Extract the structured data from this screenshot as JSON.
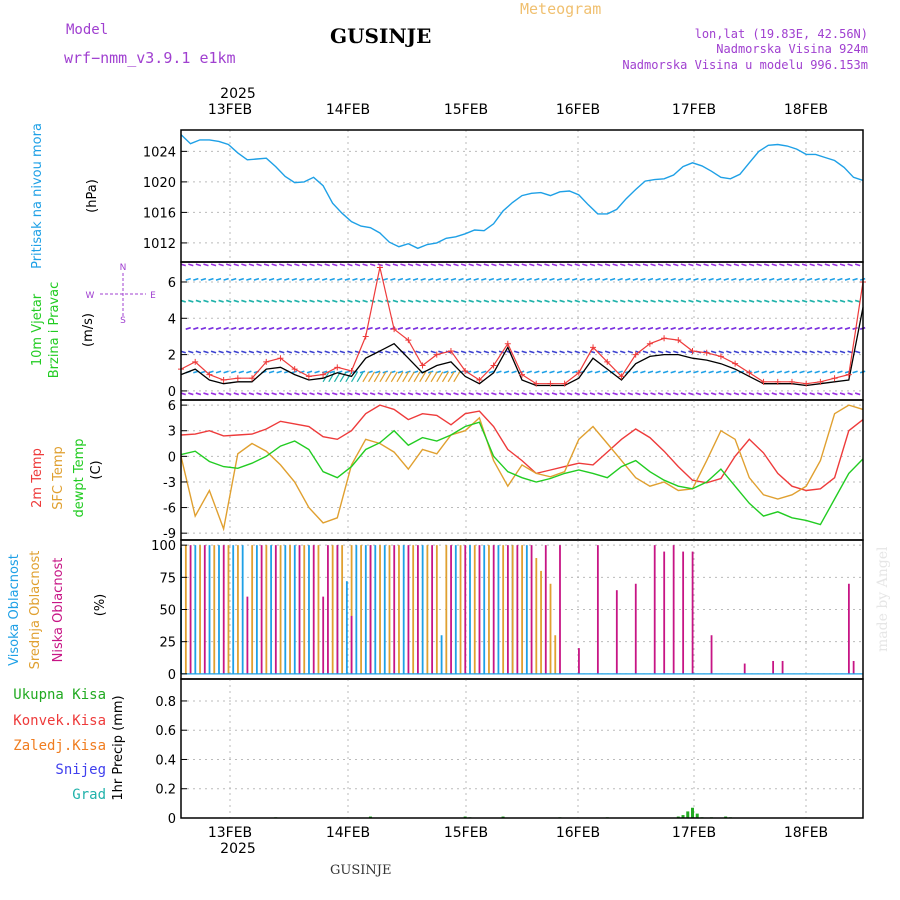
{
  "header": {
    "model_label": "Model",
    "model_name": "wrf−nmm_v3.9.1  e1km",
    "title": "GUSINJE",
    "meteogram_label": "Meteogram",
    "lonlat": "lon,lat (19.83E, 42.56N)",
    "elevation": "Nadmorska Visina 924m",
    "model_elevation": "Nadmorska Visina u modelu 996.153m",
    "watermark": "made by Angel",
    "footer_station": "GUSINJE"
  },
  "colors": {
    "pressure": "#1ea0e6",
    "temp2m": "#ee3b3b",
    "sfc": "#e0a030",
    "dewpt": "#22cc22",
    "high_cloud": "#1ea0e6",
    "mid_cloud": "#e0a030",
    "low_cloud": "#c71585",
    "total_precip": "#22aa22",
    "conv_precip": "#ee3b3b",
    "frz_precip": "#f07d20",
    "snow": "#4040ee",
    "graupel": "#20b2aa",
    "header_purple": "#a040d0",
    "meteogram_orange": "#f0c070"
  },
  "chart_data": [
    {
      "type": "line",
      "title": "",
      "ylabel": "Pritisak na nivou mora",
      "units": "(hPa)",
      "ylim": [
        1009.5,
        1026.8
      ],
      "yticks": [
        1012,
        1016,
        1020,
        1024
      ],
      "x_top_labels": [
        "13FEB",
        "14FEB",
        "15FEB",
        "16FEB",
        "17FEB",
        "18FEB"
      ],
      "x_top_year": "2025",
      "grid": true,
      "series": [
        {
          "x": [
            0,
            2,
            4,
            6,
            8,
            10,
            12,
            14,
            16,
            18,
            20,
            22,
            24,
            26,
            28,
            30,
            32,
            34,
            36,
            38,
            40,
            42,
            44,
            46,
            48,
            50,
            52,
            54,
            56,
            58,
            60,
            62,
            64,
            66,
            68,
            70,
            72,
            74,
            76,
            78,
            80,
            82,
            84,
            86,
            88,
            90,
            92,
            94,
            96,
            98,
            100,
            102,
            104,
            106,
            108,
            110,
            112,
            114,
            116,
            118,
            120,
            122,
            124,
            126,
            128,
            130,
            132,
            134,
            136,
            138,
            140,
            142,
            144
          ],
          "values": [
            1026.2,
            1025.0,
            1025.5,
            1025.5,
            1025.3,
            1024.9,
            1023.8,
            1022.9,
            1023.0,
            1023.1,
            1022.0,
            1020.7,
            1019.9,
            1020.0,
            1020.6,
            1019.5,
            1017.2,
            1015.9,
            1014.8,
            1014.2,
            1014.0,
            1013.3,
            1012.1,
            1011.5,
            1011.9,
            1011.3,
            1011.8,
            1012.0,
            1012.6,
            1012.8,
            1013.2,
            1013.7,
            1013.6,
            1014.5,
            1016.2,
            1017.3,
            1018.2,
            1018.5,
            1018.6,
            1018.2,
            1018.7,
            1018.8,
            1018.3,
            1017.0,
            1015.8,
            1015.8,
            1016.4,
            1017.8,
            1019.0,
            1020.1,
            1020.3,
            1020.4,
            1020.9,
            1022.0,
            1022.5,
            1022.1,
            1021.4,
            1020.6,
            1020.4,
            1021.0,
            1022.5,
            1024.0,
            1024.8,
            1024.9,
            1024.7,
            1024.3,
            1023.6,
            1023.6,
            1023.2,
            1022.8,
            1021.9,
            1020.6,
            1020.2
          ],
          "color": "#1ea0e6"
        }
      ]
    },
    {
      "type": "line",
      "title": "",
      "ylabel": "10m Vjetar Brzina i Pravac",
      "units": "(m/s)",
      "ylim": [
        -0.5,
        7.1
      ],
      "yticks": [
        0,
        2,
        4,
        6
      ],
      "compass_labels": {
        "n": "N",
        "s": "S",
        "e": "E",
        "w": "W"
      },
      "grid": true,
      "series": [
        {
          "name": "wind_speed",
          "x": [
            0,
            3,
            6,
            9,
            12,
            15,
            18,
            21,
            24,
            27,
            30,
            33,
            36,
            39,
            42,
            45,
            48,
            51,
            54,
            57,
            60,
            63,
            66,
            69,
            72,
            75,
            78,
            81,
            84,
            87,
            90,
            93,
            96,
            99,
            102,
            105,
            108,
            111,
            114,
            117,
            120,
            123,
            126,
            129,
            132,
            135,
            138,
            141,
            144
          ],
          "values": [
            0.9,
            1.2,
            0.6,
            0.4,
            0.5,
            0.5,
            1.2,
            1.3,
            0.9,
            0.6,
            0.7,
            1.0,
            0.8,
            1.8,
            2.2,
            2.6,
            1.8,
            1.0,
            1.4,
            1.6,
            0.8,
            0.4,
            1.0,
            2.4,
            0.6,
            0.3,
            0.3,
            0.3,
            0.7,
            1.8,
            1.2,
            0.6,
            1.5,
            1.9,
            2.0,
            2.0,
            1.8,
            1.7,
            1.5,
            1.2,
            0.8,
            0.4,
            0.4,
            0.4,
            0.3,
            0.4,
            0.5,
            0.6,
            4.6
          ],
          "color": "#000000"
        },
        {
          "name": "gust",
          "x": [
            0,
            3,
            6,
            9,
            12,
            15,
            18,
            21,
            24,
            27,
            30,
            33,
            36,
            39,
            42,
            45,
            48,
            51,
            54,
            57,
            60,
            63,
            66,
            69,
            72,
            75,
            78,
            81,
            84,
            87,
            90,
            93,
            96,
            99,
            102,
            105,
            108,
            111,
            114,
            117,
            120,
            123,
            126,
            129,
            132,
            135,
            138,
            141,
            144
          ],
          "values": [
            1.2,
            1.6,
            0.9,
            0.6,
            0.7,
            0.7,
            1.6,
            1.8,
            1.2,
            0.8,
            0.9,
            1.3,
            1.1,
            3.0,
            6.8,
            3.4,
            2.8,
            1.4,
            2.0,
            2.2,
            1.1,
            0.6,
            1.4,
            2.6,
            0.9,
            0.4,
            0.4,
            0.4,
            1.0,
            2.4,
            1.6,
            0.8,
            2.0,
            2.6,
            2.9,
            2.8,
            2.2,
            2.1,
            1.9,
            1.5,
            1.0,
            0.5,
            0.5,
            0.5,
            0.4,
            0.5,
            0.7,
            0.9,
            6.0
          ],
          "color": "#ee3b3b"
        }
      ],
      "wind_rows": [
        {
          "level": 6.9,
          "dir": "W",
          "color": "#9a30e0"
        },
        {
          "level": 6.1,
          "dir": "E",
          "color": "#1ea0e6"
        },
        {
          "level": 4.9,
          "dir": "W",
          "color": "#20b2aa"
        },
        {
          "level": 3.4,
          "dir": "E",
          "color": "#7a30e0"
        },
        {
          "level": 2.1,
          "dir": "W",
          "color": "#3a40d0"
        },
        {
          "level": 1.0,
          "dir": "E",
          "color": "#1ea0e6"
        },
        {
          "level": -0.2,
          "dir": "W",
          "color": "#9a30e0"
        }
      ]
    },
    {
      "type": "line",
      "title": "",
      "ylabel": [
        "2m Temp",
        "SFC Temp",
        "dewpt Temp"
      ],
      "units": "(C)",
      "ylim": [
        -9.8,
        6.6
      ],
      "yticks": [
        -9,
        -6,
        -3,
        0,
        3,
        6
      ],
      "grid": true,
      "series": [
        {
          "name": "2m Temp",
          "x": [
            0,
            3,
            6,
            9,
            12,
            15,
            18,
            21,
            24,
            27,
            30,
            33,
            36,
            39,
            42,
            45,
            48,
            51,
            54,
            57,
            60,
            63,
            66,
            69,
            72,
            75,
            78,
            81,
            84,
            87,
            90,
            93,
            96,
            99,
            102,
            105,
            108,
            111,
            114,
            117,
            120,
            123,
            126,
            129,
            132,
            135,
            138,
            141,
            144
          ],
          "values": [
            2.5,
            2.6,
            3.0,
            2.4,
            2.5,
            2.6,
            3.2,
            4.1,
            3.8,
            3.5,
            2.3,
            2.0,
            3.0,
            5.0,
            6.0,
            5.5,
            4.3,
            5.0,
            4.8,
            3.7,
            5.0,
            5.3,
            3.5,
            0.8,
            -0.5,
            -2.0,
            -1.6,
            -1.2,
            -0.8,
            -1.0,
            0.5,
            2.0,
            3.2,
            2.2,
            0.6,
            -1.2,
            -2.8,
            -3.1,
            -2.6,
            0.0,
            2.0,
            0.4,
            -2.0,
            -3.5,
            -4.0,
            -3.8,
            -2.5,
            3.0,
            4.3
          ],
          "color": "#ee3b3b"
        },
        {
          "name": "SFC Temp",
          "x": [
            0,
            3,
            6,
            9,
            12,
            15,
            18,
            21,
            24,
            27,
            30,
            33,
            36,
            39,
            42,
            45,
            48,
            51,
            54,
            57,
            60,
            63,
            66,
            69,
            72,
            75,
            78,
            81,
            84,
            87,
            90,
            93,
            96,
            99,
            102,
            105,
            108,
            111,
            114,
            117,
            120,
            123,
            126,
            129,
            132,
            135,
            138,
            141,
            144
          ],
          "values": [
            0.0,
            -7.0,
            -4.0,
            -8.5,
            0.3,
            1.5,
            0.6,
            -1.0,
            -3.0,
            -6.0,
            -7.8,
            -7.2,
            -1.0,
            2.0,
            1.5,
            0.5,
            -1.5,
            0.8,
            0.3,
            2.5,
            3.0,
            4.5,
            -0.5,
            -3.5,
            -1.0,
            -2.0,
            -2.4,
            -1.8,
            2.0,
            3.5,
            1.5,
            -0.5,
            -2.5,
            -3.5,
            -3.0,
            -4.0,
            -3.8,
            -0.5,
            3.0,
            2.0,
            -2.5,
            -4.5,
            -5.0,
            -4.5,
            -3.5,
            -0.5,
            5.0,
            6.0,
            5.5
          ],
          "color": "#e0a030"
        },
        {
          "name": "dewpt Temp",
          "x": [
            0,
            3,
            6,
            9,
            12,
            15,
            18,
            21,
            24,
            27,
            30,
            33,
            36,
            39,
            42,
            45,
            48,
            51,
            54,
            57,
            60,
            63,
            66,
            69,
            72,
            75,
            78,
            81,
            84,
            87,
            90,
            93,
            96,
            99,
            102,
            105,
            108,
            111,
            114,
            117,
            120,
            123,
            126,
            129,
            132,
            135,
            138,
            141,
            144
          ],
          "values": [
            0.2,
            0.6,
            -0.6,
            -1.2,
            -1.4,
            -0.8,
            0.0,
            1.2,
            1.8,
            0.8,
            -1.8,
            -2.5,
            -1.2,
            0.8,
            1.6,
            3.0,
            1.3,
            2.2,
            1.8,
            2.5,
            3.5,
            4.0,
            0.0,
            -1.8,
            -2.5,
            -3.0,
            -2.6,
            -2.0,
            -1.6,
            -2.0,
            -2.5,
            -1.2,
            -0.5,
            -1.8,
            -2.8,
            -3.5,
            -3.8,
            -3.0,
            -1.5,
            -3.5,
            -5.5,
            -7.0,
            -6.5,
            -7.2,
            -7.5,
            -8.0,
            -5.0,
            -2.0,
            -0.3
          ],
          "color": "#22cc22"
        }
      ]
    },
    {
      "type": "bar",
      "title": "",
      "ylabel": [
        "Visoka Oblacnost",
        "Srednja Oblacnost",
        "Niska Oblacnost"
      ],
      "units": "(%)",
      "ylim": [
        0,
        100
      ],
      "yticks": [
        0,
        25,
        50,
        75,
        100
      ],
      "grid": true,
      "series": [
        {
          "name": "Visoka Oblacnost",
          "x": [
            0,
            3,
            6,
            8,
            11,
            13,
            16,
            19,
            22,
            24,
            27,
            33,
            35,
            37,
            39,
            41,
            43,
            47,
            51,
            55,
            58,
            61,
            64,
            67,
            70,
            73
          ],
          "values": [
            98,
            100,
            100,
            100,
            100,
            100,
            100,
            100,
            100,
            100,
            100,
            100,
            72,
            100,
            100,
            100,
            100,
            100,
            100,
            30,
            100,
            100,
            100,
            100,
            100,
            100
          ],
          "color": "#1ea0e6"
        },
        {
          "name": "Srednja Oblacnost",
          "x": [
            1,
            4,
            7,
            10,
            12,
            15,
            18,
            21,
            23,
            26,
            29,
            32,
            34,
            36,
            38,
            40,
            42,
            44,
            46,
            49,
            52,
            54,
            56,
            59,
            62,
            65,
            68,
            70,
            72,
            75,
            76,
            78,
            79
          ],
          "values": [
            100,
            100,
            100,
            100,
            100,
            100,
            100,
            100,
            100,
            100,
            100,
            100,
            100,
            100,
            100,
            100,
            100,
            100,
            100,
            100,
            100,
            100,
            100,
            100,
            100,
            100,
            100,
            100,
            100,
            90,
            80,
            70,
            30
          ],
          "color": "#e0a030"
        },
        {
          "name": "Niska Oblacnost",
          "x": [
            2,
            5,
            9,
            14,
            17,
            20,
            25,
            28,
            30,
            31,
            33,
            36,
            40,
            45,
            48,
            50,
            53,
            57,
            60,
            63,
            66,
            69,
            71,
            74,
            77,
            80,
            84,
            88,
            92,
            96,
            100,
            102,
            104,
            106,
            108,
            112,
            119,
            125,
            127,
            141,
            142
          ],
          "values": [
            100,
            100,
            100,
            60,
            100,
            100,
            100,
            100,
            60,
            100,
            100,
            45,
            100,
            100,
            100,
            100,
            100,
            100,
            100,
            100,
            100,
            100,
            100,
            100,
            100,
            100,
            20,
            100,
            65,
            70,
            100,
            95,
            100,
            95,
            95,
            30,
            8,
            10,
            10,
            70,
            10
          ],
          "color": "#c71585"
        }
      ]
    },
    {
      "type": "bar",
      "title": "",
      "ylabel": "1hr Precip (mm)",
      "legend": [
        "Ukupna Kisa",
        "Konvek.Kisa",
        "Zaledj.Kisa",
        "Snijeg",
        "Grad"
      ],
      "ylim": [
        0,
        0.95
      ],
      "yticks": [
        0,
        0.2,
        0.4,
        0.6,
        0.8
      ],
      "ytick_labels": [
        "0",
        "0.2",
        "0.4",
        "0.6",
        "0.8"
      ],
      "x_bottom_labels": [
        "13FEB",
        "14FEB",
        "15FEB",
        "16FEB",
        "17FEB",
        "18FEB"
      ],
      "x_bottom_year": "2025",
      "grid": true,
      "series": [
        {
          "name": "Ukupna Kisa",
          "x": [
            20,
            40,
            60,
            61,
            68,
            80,
            90,
            105,
            106,
            107,
            108,
            109,
            110,
            112,
            115,
            116
          ],
          "values": [
            0.005,
            0.01,
            0.01,
            0.005,
            0.01,
            0.005,
            0.005,
            0.01,
            0.02,
            0.045,
            0.07,
            0.03,
            0.005,
            0.005,
            0.01,
            0.005
          ],
          "color": "#22aa22"
        },
        {
          "name": "Konvek.Kisa",
          "x": [],
          "values": [],
          "color": "#ee3b3b"
        }
      ]
    }
  ]
}
